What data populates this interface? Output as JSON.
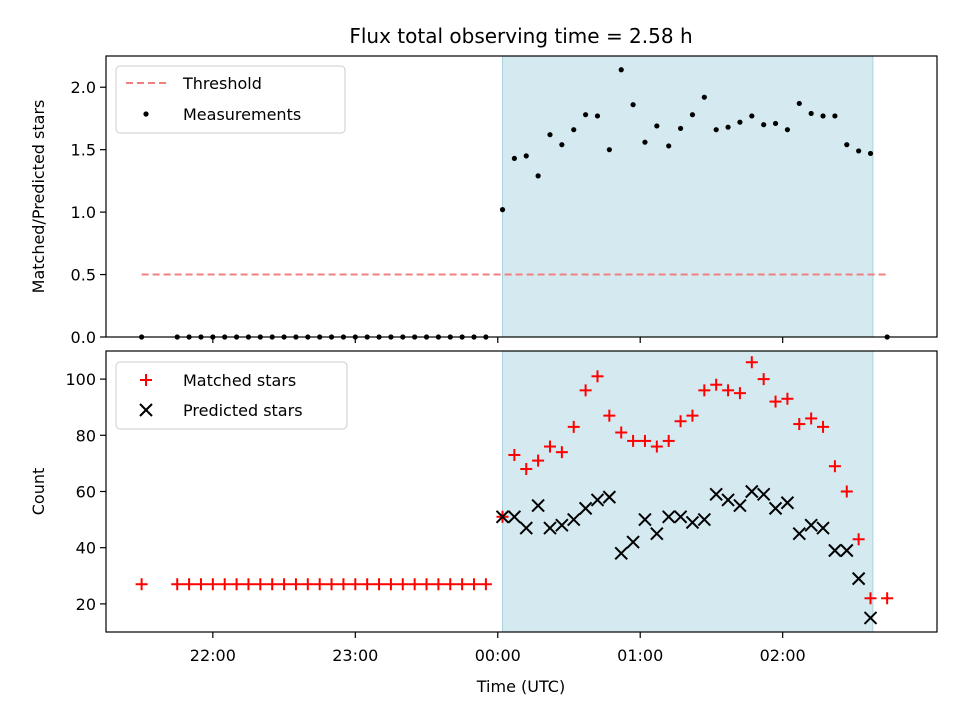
{
  "chart_data": [
    {
      "type": "scatter",
      "title": "Flux total observing time = 2.58 h",
      "xlabel": "",
      "ylabel": "Matched/Predicted stars",
      "xlim": [
        -165,
        185
      ],
      "ylim": [
        0,
        2.25
      ],
      "yticks": [
        0.0,
        0.5,
        1.0,
        1.5,
        2.0
      ],
      "ytick_labels": [
        "0.0",
        "0.5",
        "1.0",
        "1.5",
        "2.0"
      ],
      "xticks": [
        -120,
        -60,
        0,
        60,
        120
      ],
      "grid": false,
      "legend_position": "upper-left",
      "shaded_interval": [
        2,
        158
      ],
      "shade_color": "#d4eaf0",
      "threshold": {
        "name": "Threshold",
        "value": 0.5,
        "x": [
          -150,
          164
        ],
        "color": "#f08080"
      },
      "series": [
        {
          "name": "Measurements",
          "color": "#000000",
          "points": [
            [
              -150,
              0.0
            ],
            [
              -135,
              0.0
            ],
            [
              -130,
              0.0
            ],
            [
              -125,
              0.0
            ],
            [
              -120,
              0.0
            ],
            [
              -115,
              0.0
            ],
            [
              -110,
              0.0
            ],
            [
              -105,
              0.0
            ],
            [
              -100,
              0.0
            ],
            [
              -95,
              0.0
            ],
            [
              -90,
              0.0
            ],
            [
              -85,
              0.0
            ],
            [
              -80,
              0.0
            ],
            [
              -75,
              0.0
            ],
            [
              -70,
              0.0
            ],
            [
              -65,
              0.0
            ],
            [
              -60,
              0.0
            ],
            [
              -55,
              0.0
            ],
            [
              -50,
              0.0
            ],
            [
              -45,
              0.0
            ],
            [
              -40,
              0.0
            ],
            [
              -35,
              0.0
            ],
            [
              -30,
              0.0
            ],
            [
              -25,
              0.0
            ],
            [
              -20,
              0.0
            ],
            [
              -15,
              0.0
            ],
            [
              -10,
              0.0
            ],
            [
              -5,
              0.0
            ],
            [
              2,
              1.02
            ],
            [
              7,
              1.43
            ],
            [
              12,
              1.45
            ],
            [
              17,
              1.29
            ],
            [
              22,
              1.62
            ],
            [
              27,
              1.54
            ],
            [
              32,
              1.66
            ],
            [
              37,
              1.78
            ],
            [
              42,
              1.77
            ],
            [
              47,
              1.5
            ],
            [
              52,
              2.14
            ],
            [
              57,
              1.86
            ],
            [
              62,
              1.56
            ],
            [
              67,
              1.69
            ],
            [
              72,
              1.53
            ],
            [
              77,
              1.67
            ],
            [
              82,
              1.78
            ],
            [
              87,
              1.92
            ],
            [
              92,
              1.66
            ],
            [
              97,
              1.68
            ],
            [
              102,
              1.72
            ],
            [
              107,
              1.77
            ],
            [
              112,
              1.7
            ],
            [
              117,
              1.71
            ],
            [
              122,
              1.66
            ],
            [
              127,
              1.87
            ],
            [
              132,
              1.79
            ],
            [
              137,
              1.77
            ],
            [
              142,
              1.77
            ],
            [
              147,
              1.54
            ],
            [
              152,
              1.49
            ],
            [
              157,
              1.47
            ],
            [
              164,
              0.0
            ]
          ]
        }
      ]
    },
    {
      "type": "scatter",
      "title": "",
      "xlabel": "Time (UTC)",
      "ylabel": "Count",
      "xlim": [
        -165,
        185
      ],
      "ylim": [
        10,
        110
      ],
      "yticks": [
        20,
        40,
        60,
        80,
        100
      ],
      "ytick_labels": [
        "20",
        "40",
        "60",
        "80",
        "100"
      ],
      "xticks": [
        -120,
        -60,
        0,
        60,
        120
      ],
      "xtick_labels": [
        "22:00",
        "23:00",
        "00:00",
        "01:00",
        "02:00"
      ],
      "grid": false,
      "legend_position": "upper-left",
      "shaded_interval": [
        2,
        158
      ],
      "shade_color": "#d4eaf0",
      "series": [
        {
          "name": "Matched stars",
          "marker": "plus",
          "color": "#ff0000",
          "points": [
            [
              -150,
              27
            ],
            [
              -135,
              27
            ],
            [
              -130,
              27
            ],
            [
              -125,
              27
            ],
            [
              -120,
              27
            ],
            [
              -115,
              27
            ],
            [
              -110,
              27
            ],
            [
              -105,
              27
            ],
            [
              -100,
              27
            ],
            [
              -95,
              27
            ],
            [
              -90,
              27
            ],
            [
              -85,
              27
            ],
            [
              -80,
              27
            ],
            [
              -75,
              27
            ],
            [
              -70,
              27
            ],
            [
              -65,
              27
            ],
            [
              -60,
              27
            ],
            [
              -55,
              27
            ],
            [
              -50,
              27
            ],
            [
              -45,
              27
            ],
            [
              -40,
              27
            ],
            [
              -35,
              27
            ],
            [
              -30,
              27
            ],
            [
              -25,
              27
            ],
            [
              -20,
              27
            ],
            [
              -15,
              27
            ],
            [
              -10,
              27
            ],
            [
              -5,
              27
            ],
            [
              2,
              51
            ],
            [
              7,
              73
            ],
            [
              12,
              68
            ],
            [
              17,
              71
            ],
            [
              22,
              76
            ],
            [
              27,
              74
            ],
            [
              32,
              83
            ],
            [
              37,
              96
            ],
            [
              42,
              101
            ],
            [
              47,
              87
            ],
            [
              52,
              81
            ],
            [
              57,
              78
            ],
            [
              62,
              78
            ],
            [
              67,
              76
            ],
            [
              72,
              78
            ],
            [
              77,
              85
            ],
            [
              82,
              87
            ],
            [
              87,
              96
            ],
            [
              92,
              98
            ],
            [
              97,
              96
            ],
            [
              102,
              95
            ],
            [
              107,
              106
            ],
            [
              112,
              100
            ],
            [
              117,
              92
            ],
            [
              122,
              93
            ],
            [
              127,
              84
            ],
            [
              132,
              86
            ],
            [
              137,
              83
            ],
            [
              142,
              69
            ],
            [
              147,
              60
            ],
            [
              152,
              43
            ],
            [
              157,
              22
            ],
            [
              164,
              22
            ]
          ]
        },
        {
          "name": "Predicted stars",
          "marker": "x",
          "color": "#000000",
          "points": [
            [
              2,
              51
            ],
            [
              7,
              51
            ],
            [
              12,
              47
            ],
            [
              17,
              55
            ],
            [
              22,
              47
            ],
            [
              27,
              48
            ],
            [
              32,
              50
            ],
            [
              37,
              54
            ],
            [
              42,
              57
            ],
            [
              47,
              58
            ],
            [
              52,
              38
            ],
            [
              57,
              42
            ],
            [
              62,
              50
            ],
            [
              67,
              45
            ],
            [
              72,
              51
            ],
            [
              77,
              51
            ],
            [
              82,
              49
            ],
            [
              87,
              50
            ],
            [
              92,
              59
            ],
            [
              97,
              57
            ],
            [
              102,
              55
            ],
            [
              107,
              60
            ],
            [
              112,
              59
            ],
            [
              117,
              54
            ],
            [
              122,
              56
            ],
            [
              127,
              45
            ],
            [
              132,
              48
            ],
            [
              137,
              47
            ],
            [
              142,
              39
            ],
            [
              147,
              39
            ],
            [
              152,
              29
            ],
            [
              157,
              15
            ]
          ]
        }
      ]
    }
  ]
}
